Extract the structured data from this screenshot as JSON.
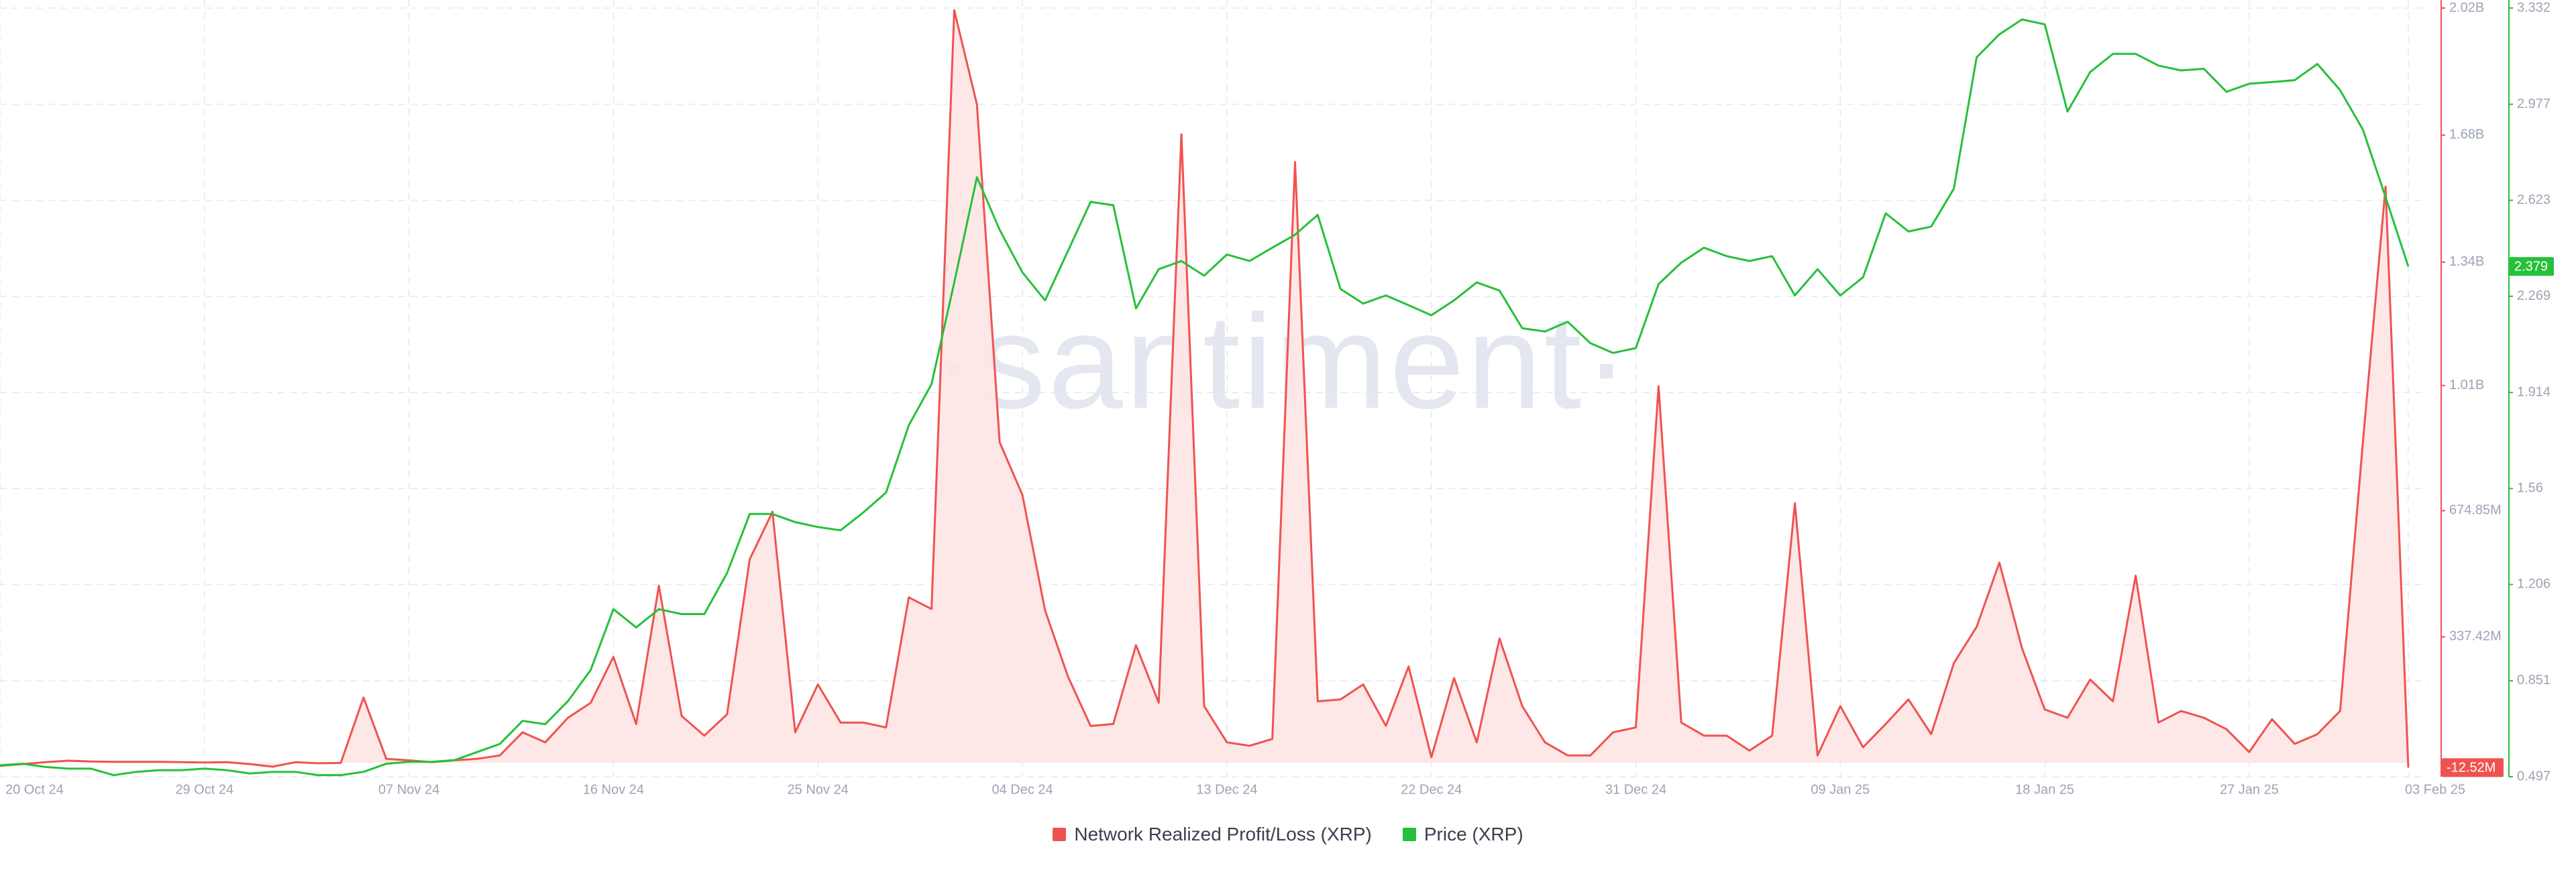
{
  "chart_data": {
    "type": "line",
    "watermark": "·santiment·",
    "categories": [
      "20 Oct 24",
      null,
      null,
      null,
      null,
      null,
      null,
      null,
      null,
      "29 Oct 24",
      null,
      null,
      null,
      null,
      null,
      null,
      null,
      null,
      "07 Nov 24",
      null,
      null,
      null,
      null,
      null,
      null,
      null,
      null,
      "16 Nov 24",
      null,
      null,
      null,
      null,
      null,
      null,
      null,
      null,
      "25 Nov 24",
      null,
      null,
      null,
      null,
      null,
      null,
      null,
      null,
      "04 Dec 24",
      null,
      null,
      null,
      null,
      null,
      null,
      null,
      null,
      "13 Dec 24",
      null,
      null,
      null,
      null,
      null,
      null,
      null,
      null,
      "22 Dec 24",
      null,
      null,
      null,
      null,
      null,
      null,
      null,
      null,
      "31 Dec 24",
      null,
      null,
      null,
      null,
      null,
      null,
      null,
      null,
      "09 Jan 25",
      null,
      null,
      null,
      null,
      null,
      null,
      null,
      null,
      "18 Jan 25",
      null,
      null,
      null,
      null,
      null,
      null,
      null,
      null,
      "27 Jan 25",
      null,
      null,
      null,
      null,
      null,
      null,
      "03 Feb 25"
    ],
    "series": [
      {
        "name": "Network Realized Profit/Loss (XRP)",
        "color": "#ef5350",
        "fill": "#fde4e4",
        "area": true,
        "axis": "y",
        "values": [
          -8000000,
          -3000000,
          2000000,
          6000000,
          4000000,
          3000000,
          3000000,
          3000000,
          2000000,
          1000000,
          2000000,
          -3000000,
          -10000000,
          2000000,
          -1000000,
          0,
          175000000,
          11000000,
          7000000,
          2000000,
          7000000,
          11000000,
          20000000,
          82000000,
          55000000,
          121000000,
          161000000,
          284000000,
          104000000,
          474000000,
          126000000,
          73000000,
          130000000,
          545000000,
          672000000,
          82000000,
          210000000,
          108000000,
          108000000,
          95000000,
          443000000,
          412000000,
          2014000000,
          1762000000,
          858000000,
          717000000,
          408000000,
          232000000,
          99000000,
          104000000,
          315000000,
          161000000,
          1682000000,
          152000000,
          55000000,
          46000000,
          64000000,
          1608000000,
          165000000,
          170000000,
          210000000,
          99000000,
          258000000,
          15000000,
          227000000,
          55000000,
          333000000,
          152000000,
          55000000,
          20000000,
          20000000,
          82000000,
          95000000,
          1008000000,
          108000000,
          73000000,
          73000000,
          33000000,
          73000000,
          695000000,
          20000000,
          152000000,
          42000000,
          104000000,
          170000000,
          77000000,
          267000000,
          364000000,
          536000000,
          307000000,
          143000000,
          121000000,
          223000000,
          165000000,
          501000000,
          108000000,
          139000000,
          121000000,
          90000000,
          29000000,
          117000000,
          51000000,
          77000000,
          139000000,
          858000000,
          1542000000,
          -12520000
        ],
        "value_labels": [
          null,
          null,
          null,
          null,
          null,
          null,
          null,
          null,
          null,
          null,
          null,
          null,
          null,
          null,
          null,
          null,
          null,
          null,
          null,
          null,
          null,
          null,
          null,
          null,
          null,
          null,
          null,
          null,
          null,
          null,
          null,
          null,
          null,
          null,
          null,
          null,
          null,
          null,
          null,
          null,
          null,
          null,
          null,
          null,
          null,
          null,
          null,
          null,
          null,
          null,
          null,
          null,
          null,
          null,
          null,
          null,
          null,
          null,
          null,
          null,
          null,
          null,
          null,
          null,
          null,
          null,
          null,
          null,
          null,
          null,
          null,
          null,
          null,
          null,
          null,
          null,
          null,
          null,
          null,
          null,
          null,
          null,
          null,
          null,
          null,
          null,
          null,
          null,
          null,
          null,
          null,
          null,
          null,
          null,
          null,
          null,
          null,
          null,
          null,
          null,
          null,
          null,
          null,
          null,
          null,
          null,
          "-12.52M"
        ]
      },
      {
        "name": "Price (XRP)",
        "color": "#26c03a",
        "area": false,
        "axis": "y2",
        "values": [
          0.539,
          0.545,
          0.533,
          0.527,
          0.527,
          0.503,
          0.515,
          0.521,
          0.521,
          0.527,
          0.521,
          0.509,
          0.515,
          0.515,
          0.503,
          0.503,
          0.515,
          0.545,
          0.552,
          0.552,
          0.558,
          0.588,
          0.618,
          0.703,
          0.691,
          0.776,
          0.891,
          1.115,
          1.048,
          1.115,
          1.097,
          1.097,
          1.248,
          1.466,
          1.466,
          1.436,
          1.418,
          1.406,
          1.472,
          1.545,
          1.793,
          1.945,
          2.32,
          2.708,
          2.514,
          2.357,
          2.254,
          2.435,
          2.617,
          2.605,
          2.224,
          2.369,
          2.399,
          2.345,
          2.423,
          2.399,
          2.448,
          2.496,
          2.569,
          2.296,
          2.242,
          2.272,
          2.236,
          2.199,
          2.254,
          2.32,
          2.29,
          2.151,
          2.139,
          2.175,
          2.096,
          2.06,
          2.078,
          2.314,
          2.393,
          2.448,
          2.417,
          2.399,
          2.417,
          2.272,
          2.369,
          2.272,
          2.339,
          2.575,
          2.508,
          2.526,
          2.666,
          3.15,
          3.235,
          3.29,
          3.272,
          2.95,
          3.096,
          3.163,
          3.163,
          3.12,
          3.102,
          3.108,
          3.023,
          3.053,
          3.059,
          3.066,
          3.126,
          3.029,
          2.884,
          2.635,
          2.379
        ],
        "value_labels": [
          null,
          null,
          null,
          null,
          null,
          null,
          null,
          null,
          null,
          null,
          null,
          null,
          null,
          null,
          null,
          null,
          null,
          null,
          null,
          null,
          null,
          null,
          null,
          null,
          null,
          null,
          null,
          null,
          null,
          null,
          null,
          null,
          null,
          null,
          null,
          null,
          null,
          null,
          null,
          null,
          null,
          null,
          null,
          null,
          null,
          null,
          null,
          null,
          null,
          null,
          null,
          null,
          null,
          null,
          null,
          null,
          null,
          null,
          null,
          null,
          null,
          null,
          null,
          null,
          null,
          null,
          null,
          null,
          null,
          null,
          null,
          null,
          null,
          null,
          null,
          null,
          null,
          null,
          null,
          null,
          null,
          null,
          null,
          null,
          null,
          null,
          null,
          null,
          null,
          null,
          null,
          null,
          null,
          null,
          null,
          null,
          null,
          null,
          null,
          null,
          null,
          null,
          null,
          null,
          null,
          null,
          "2.379"
        ]
      }
    ],
    "ylim": [
      -37000000,
      2020000000
    ],
    "yticks": [
      {
        "value": 337420000,
        "label": "337.42M"
      },
      {
        "value": 674850000,
        "label": "674.85M"
      },
      {
        "value": 1010000000,
        "label": "1.01B"
      },
      {
        "value": 1340000000,
        "label": "1.34B"
      },
      {
        "value": 1680000000,
        "label": "1.68B"
      },
      {
        "value": 2020000000,
        "label": "2.02B"
      }
    ],
    "y2lim": [
      0.497,
      3.332
    ],
    "y2ticks": [
      0.497,
      0.851,
      1.206,
      1.56,
      1.914,
      2.269,
      2.623,
      2.977,
      3.332
    ],
    "grid": true,
    "legend": "bottom"
  }
}
